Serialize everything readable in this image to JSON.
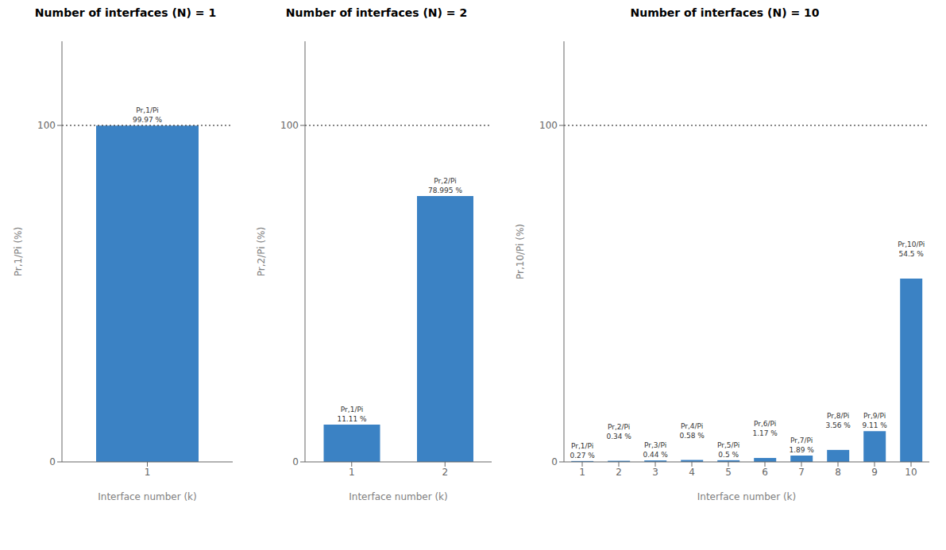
{
  "chart_data": [
    {
      "type": "bar",
      "title": "Number of interfaces (N) = 1",
      "categories": [
        "1"
      ],
      "values": [
        99.97
      ],
      "value_labels": [
        "99.97 %"
      ],
      "annotations": [
        "Pr,1/Pi"
      ],
      "data_labels": true,
      "color": "#3B82C4",
      "xlabel": "Interface number (k)",
      "ylabel": "Pr,1/Pi (%)",
      "ylim": [
        0,
        125
      ],
      "yticks": [
        0,
        100
      ],
      "reference_line": 100,
      "grid": false
    },
    {
      "type": "bar",
      "title": "Number of interfaces (N) = 2",
      "categories": [
        "1",
        "2"
      ],
      "values": [
        11.11,
        78.995
      ],
      "value_labels": [
        "11.11 %",
        "78.995 %"
      ],
      "annotations": [
        "Pr,1/Pi",
        "Pr,2/Pi"
      ],
      "data_labels": true,
      "color": "#3B82C4",
      "xlabel": "Interface number (k)",
      "ylabel": "Pr,2/Pi (%)",
      "ylim": [
        0,
        125
      ],
      "yticks": [
        0,
        100
      ],
      "reference_line": 100,
      "grid": false
    },
    {
      "type": "bar",
      "title": "Number of interfaces (N) = 10",
      "categories": [
        "1",
        "2",
        "3",
        "4",
        "5",
        "6",
        "7",
        "8",
        "9",
        "10"
      ],
      "values": [
        0.27,
        0.34,
        0.44,
        0.58,
        0.5,
        1.17,
        1.89,
        3.56,
        9.11,
        54.5
      ],
      "value_labels": [
        "0.27 %",
        "0.34 %",
        "0.44 %",
        "0.58 %",
        "0.5 %",
        "1.17 %",
        "1.89 %",
        "3.56 %",
        "9.11 %",
        "54.5 %"
      ],
      "annotations": [
        "Pr,1/Pi",
        "Pr,2/Pi",
        "Pr,3/Pi",
        "Pr,4/Pi",
        "Pr,5/Pi",
        "Pr,6/Pi",
        "Pr,7/Pi",
        "Pr,8/Pi",
        "Pr,9/Pi",
        "Pr,10/Pi"
      ],
      "data_labels": true,
      "color": "#3B82C4",
      "xlabel": "Interface number (k)",
      "ylabel": "Pr,10/Pi (%)",
      "ylim": [
        0,
        125
      ],
      "yticks": [
        0,
        100
      ],
      "reference_line": 100,
      "grid": false
    }
  ]
}
